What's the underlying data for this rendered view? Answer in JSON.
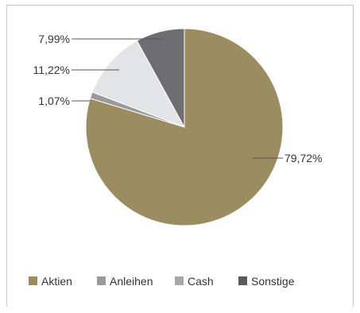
{
  "chart_data": {
    "type": "pie",
    "categories": [
      "Aktien",
      "Anleihen",
      "Cash",
      "Sonstige"
    ],
    "values": [
      79.72,
      1.07,
      11.22,
      7.99
    ],
    "labels": [
      "79,72%",
      "1,07%",
      "11,22%",
      "7,99%"
    ],
    "colors": [
      "#9b8c62",
      "#9a9a9a",
      "#e3e4e6",
      "#6e6e70"
    ],
    "legend_colors": [
      "#9b8c62",
      "#9a9a9a",
      "#a8a8a8",
      "#5a5a5c"
    ],
    "legend_position": "bottom",
    "title": "",
    "xlabel": "",
    "ylabel": ""
  }
}
